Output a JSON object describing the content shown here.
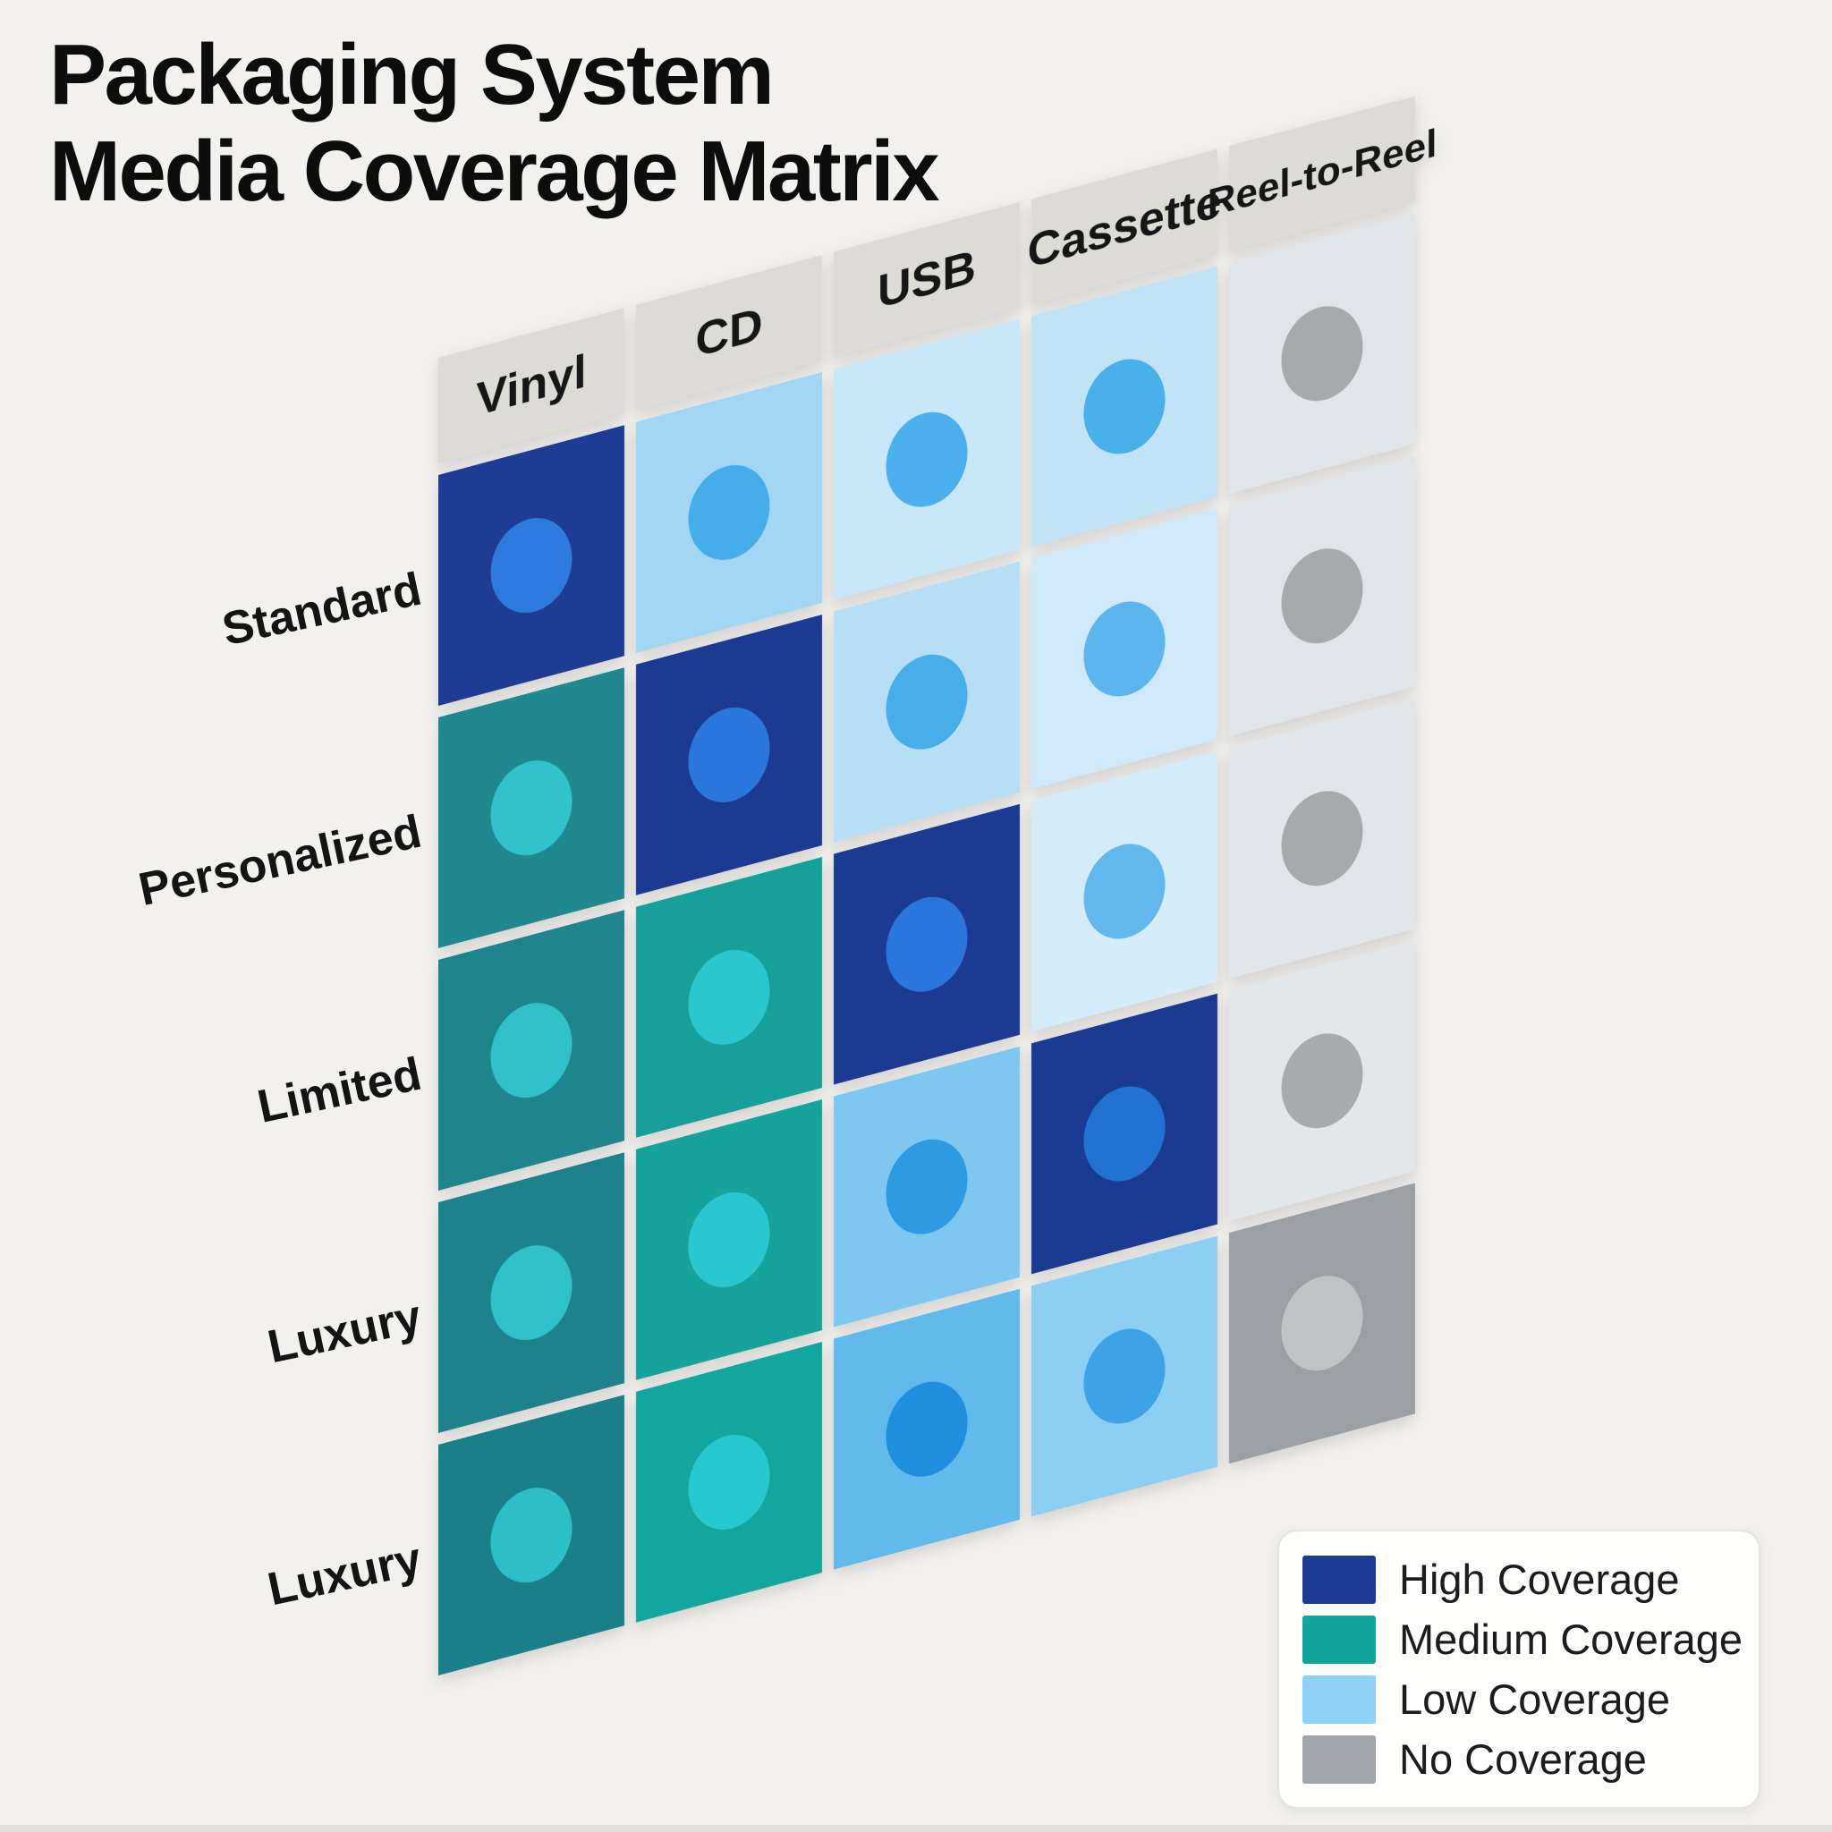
{
  "title": {
    "line1": "Packaging System",
    "line2": "Media Coverage Matrix"
  },
  "matrix": {
    "columns": [
      "Vinyl",
      "CD",
      "USB",
      "Cassette",
      "Reel-to-Reel"
    ],
    "rows": [
      "Standard",
      "Personalized",
      "Limited",
      "Luxury",
      "Luxury"
    ],
    "header_bg": "#dddbd6",
    "cells": [
      [
        {
          "coverage": "high",
          "bg": "#1e3c94",
          "dot": "#2e7ade"
        },
        {
          "coverage": "low",
          "bg": "#a2d6f2",
          "dot": "#45aeea"
        },
        {
          "coverage": "low",
          "bg": "#c8e7f9",
          "dot": "#4cb0ee"
        },
        {
          "coverage": "low",
          "bg": "#c2e2f6",
          "dot": "#49b0ea"
        },
        {
          "coverage": "none",
          "bg": "#e0e5e9",
          "dot": "#a6aaad"
        }
      ],
      [
        {
          "coverage": "medium",
          "bg": "#20888f",
          "dot": "#32c2cb"
        },
        {
          "coverage": "high",
          "bg": "#1c3a92",
          "dot": "#2b76dc"
        },
        {
          "coverage": "low",
          "bg": "#b7def5",
          "dot": "#47aeea"
        },
        {
          "coverage": "low",
          "bg": "#cfe9fa",
          "dot": "#5cb5ec"
        },
        {
          "coverage": "none",
          "bg": "#dfe5e9",
          "dot": "#a6aaad"
        }
      ],
      [
        {
          "coverage": "medium",
          "bg": "#1e858d",
          "dot": "#30c0ca"
        },
        {
          "coverage": "medium",
          "bg": "#17a09a",
          "dot": "#2cc6cf"
        },
        {
          "coverage": "high",
          "bg": "#1c3a92",
          "dot": "#2b76dc"
        },
        {
          "coverage": "low",
          "bg": "#d5ecfb",
          "dot": "#62b8ec"
        },
        {
          "coverage": "none",
          "bg": "#e1e6ea",
          "dot": "#a6aaad"
        }
      ],
      [
        {
          "coverage": "medium",
          "bg": "#1d828b",
          "dot": "#2fc0c9"
        },
        {
          "coverage": "medium",
          "bg": "#15a39c",
          "dot": "#2ac7d0"
        },
        {
          "coverage": "low",
          "bg": "#7ec7f0",
          "dot": "#2e9ae2"
        },
        {
          "coverage": "high",
          "bg": "#1b3b93",
          "dot": "#2272d4"
        },
        {
          "coverage": "none",
          "bg": "#e2e7ea",
          "dot": "#a8abae"
        }
      ],
      [
        {
          "coverage": "medium",
          "bg": "#1b7f89",
          "dot": "#2dbfc8"
        },
        {
          "coverage": "medium",
          "bg": "#13a69e",
          "dot": "#28c8d1"
        },
        {
          "coverage": "low",
          "bg": "#62b9ec",
          "dot": "#1f8ede"
        },
        {
          "coverage": "low",
          "bg": "#8ccff3",
          "dot": "#3da3e6"
        },
        {
          "coverage": "none",
          "bg": "#9aa0a4",
          "dot": "#bfc3c6"
        }
      ]
    ]
  },
  "legend": {
    "items": [
      {
        "label": "High Coverage",
        "color": "#1c3a96"
      },
      {
        "label": "Medium Coverage",
        "color": "#10a69c"
      },
      {
        "label": "Low Coverage",
        "color": "#8ed1f6"
      },
      {
        "label": "No Coverage",
        "color": "#9fa5a9"
      }
    ]
  },
  "chart_data": {
    "type": "heatmap",
    "title": "Packaging System Media Coverage Matrix",
    "x_categories": [
      "Vinyl",
      "CD",
      "USB",
      "Cassette",
      "Reel-to-Reel"
    ],
    "y_categories": [
      "Standard",
      "Personalized",
      "Limited",
      "Luxury",
      "Luxury"
    ],
    "levels": [
      [
        "high",
        "low",
        "low",
        "low",
        "none"
      ],
      [
        "medium",
        "high",
        "low",
        "low",
        "none"
      ],
      [
        "medium",
        "medium",
        "high",
        "low",
        "none"
      ],
      [
        "medium",
        "medium",
        "low",
        "high",
        "none"
      ],
      [
        "medium",
        "medium",
        "low",
        "low",
        "none"
      ]
    ],
    "legend_entries": [
      "High Coverage",
      "Medium Coverage",
      "Low Coverage",
      "No Coverage"
    ],
    "legend_position": "bottom-right",
    "grid": true,
    "style_note": "sheared/isometric matrix, each cell holds one ellipse marker"
  }
}
